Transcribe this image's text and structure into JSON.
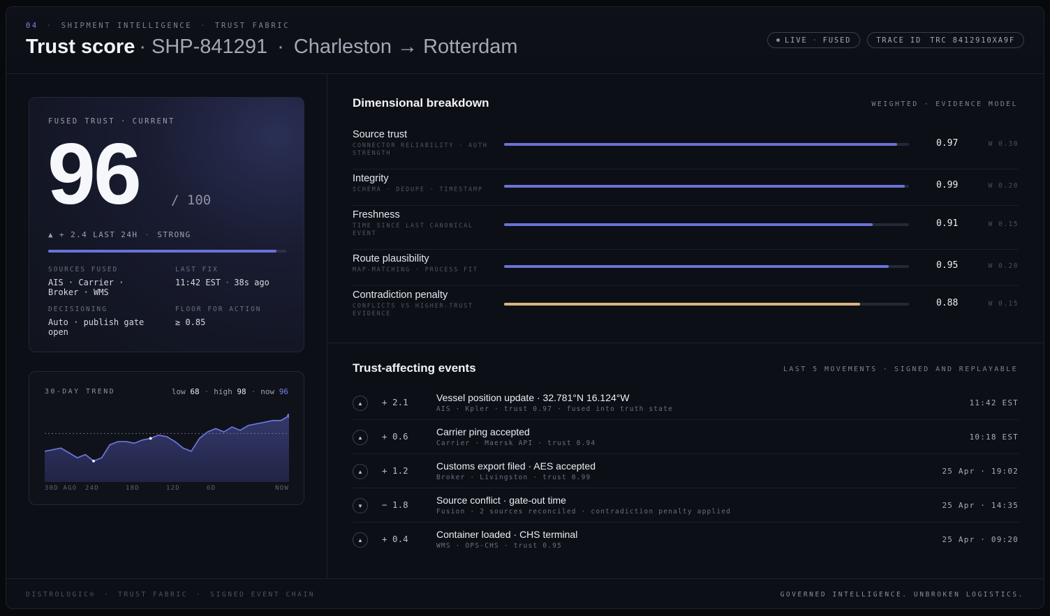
{
  "header": {
    "section_number": "04",
    "crumb_1": "SHIPMENT INTELLIGENCE",
    "crumb_2": "TRUST FABRIC",
    "title": "Trust score",
    "shipment_id": "SHP-841291",
    "route": "Charleston → Rotterdam",
    "live_label": "LIVE",
    "fused_label": "FUSED",
    "trace_label": "TRACE ID",
    "trace_value": "TRC 8412910XA9F"
  },
  "score_card": {
    "label_1": "FUSED TRUST",
    "label_2": "CURRENT",
    "score": "96",
    "denominator": "/ 100",
    "delta": "▲ + 2.4 LAST 24H",
    "strength": "STRONG",
    "progress": 0.96,
    "sources_label": "SOURCES FUSED",
    "sources_value": "AIS · Carrier · Broker · WMS",
    "last_fix_label": "LAST FIX",
    "last_fix_time": "11:42 EST",
    "last_fix_ago": "38s ago",
    "decisioning_label": "DECISIONING",
    "decisioning_value": "Auto · publish gate open",
    "floor_label": "FLOOR FOR ACTION",
    "floor_value": "≥ 0.85"
  },
  "trend": {
    "label": "30-DAY TREND",
    "low_label": "low",
    "low_value": "68",
    "high_label": "high",
    "high_value": "98",
    "now_label": "now",
    "now_value": "96",
    "x_ticks": [
      "30D AGO",
      "24D",
      "18D",
      "12D",
      "6D",
      "NOW"
    ]
  },
  "chart_data": {
    "type": "area",
    "title": "30-DAY TREND",
    "x": [
      30,
      29,
      28,
      27,
      26,
      25,
      24,
      23,
      22,
      21,
      20,
      19,
      18,
      17,
      16,
      15,
      14,
      13,
      12,
      11,
      10,
      9,
      8,
      7,
      6,
      5,
      4,
      3,
      2,
      1,
      0
    ],
    "values": [
      74,
      75,
      76,
      73,
      70,
      72,
      68,
      70,
      78,
      80,
      80,
      79,
      81,
      82,
      84,
      83,
      80,
      76,
      74,
      82,
      86,
      88,
      86,
      89,
      87,
      90,
      91,
      92,
      93,
      93,
      96
    ],
    "ylim": [
      55,
      105
    ],
    "baseline": 85,
    "color": "#6a72d8"
  },
  "dimensional": {
    "title": "Dimensional breakdown",
    "right_1": "WEIGHTED",
    "right_2": "EVIDENCE MODEL",
    "rows": [
      {
        "name": "Source trust",
        "sub": "CONNECTOR RELIABILITY · AUTH STRENGTH",
        "value": "0.97",
        "fill": 0.97,
        "weight": "W 0.30",
        "color": "#6a72d8"
      },
      {
        "name": "Integrity",
        "sub": "SCHEMA · DEDUPE · TIMESTAMP",
        "value": "0.99",
        "fill": 0.99,
        "weight": "W 0.20",
        "color": "#6a72d8"
      },
      {
        "name": "Freshness",
        "sub": "TIME SINCE LAST CANONICAL EVENT",
        "value": "0.91",
        "fill": 0.91,
        "weight": "W 0.15",
        "color": "#6a72d8"
      },
      {
        "name": "Route plausibility",
        "sub": "MAP-MATCHING · PROCESS FIT",
        "value": "0.95",
        "fill": 0.95,
        "weight": "W 0.20",
        "color": "#6a72d8"
      },
      {
        "name": "Contradiction penalty",
        "sub": "CONFLICTS VS HIGHER-TRUST EVIDENCE",
        "value": "0.88",
        "fill": 0.88,
        "weight": "W 0.15",
        "color": "#d8b47e"
      }
    ]
  },
  "events": {
    "title": "Trust-affecting events",
    "right_1": "LAST 5 MOVEMENTS",
    "right_2": "SIGNED AND REPLAYABLE",
    "rows": [
      {
        "dir": "▲",
        "delta": "+ 2.1",
        "title": "Vessel position update · 32.781°N 16.124°W",
        "sub": "AIS · Kpler · trust 0.97 · fused into truth state",
        "time": "11:42 EST"
      },
      {
        "dir": "▲",
        "delta": "+ 0.6",
        "title": "Carrier ping accepted",
        "sub": "Carrier · Maersk API · trust 0.94",
        "time": "10:18 EST"
      },
      {
        "dir": "▲",
        "delta": "+ 1.2",
        "title": "Customs export filed · AES accepted",
        "sub": "Broker · Livingston · trust 0.99",
        "time": "25 Apr · 19:02"
      },
      {
        "dir": "▼",
        "delta": "− 1.8",
        "title": "Source conflict · gate-out time",
        "sub": "Fusion · 2 sources reconciled · contradiction penalty applied",
        "time": "25 Apr · 14:35"
      },
      {
        "dir": "▲",
        "delta": "+ 0.4",
        "title": "Container loaded · CHS terminal",
        "sub": "WMS · OPS-CHS · trust 0.95",
        "time": "25 Apr · 09:20"
      }
    ]
  },
  "footer": {
    "brand": "DISTROLOGIC®",
    "item_1": "TRUST FABRIC",
    "item_2": "SIGNED EVENT CHAIN",
    "tagline": "GOVERNED INTELLIGENCE. UNBROKEN LOGISTICS."
  }
}
